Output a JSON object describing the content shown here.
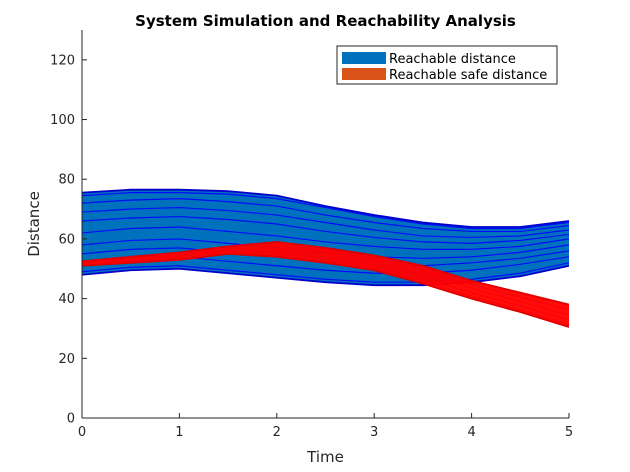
{
  "chart_data": {
    "type": "area",
    "title": "System Simulation and Reachability Analysis",
    "xlabel": "Time",
    "ylabel": "Distance",
    "xlim": [
      0,
      5
    ],
    "ylim": [
      0,
      130
    ],
    "xticks": [
      "0",
      "1",
      "2",
      "3",
      "4",
      "5"
    ],
    "yticks": [
      "0",
      "20",
      "40",
      "60",
      "80",
      "100",
      "120"
    ],
    "grid": false,
    "legend_position": "top-right",
    "series": [
      {
        "name": "Reachable distance",
        "color": "#0072BD",
        "line_color": "#0000FF",
        "x": [
          0,
          0.5,
          1.0,
          1.5,
          2.0,
          2.5,
          3.0,
          3.5,
          4.0,
          4.5,
          5.0
        ],
        "lower": [
          48,
          49.5,
          50,
          48.5,
          47,
          45.5,
          44.5,
          44.5,
          45.5,
          47.5,
          51
        ],
        "upper": [
          75.5,
          76.5,
          76.5,
          76,
          74.5,
          71,
          68,
          65.5,
          64,
          64,
          66
        ],
        "trajectories": [
          [
            49,
            50.5,
            51,
            49.5,
            48,
            46.5,
            45.5,
            45.5,
            46.5,
            48.5,
            52
          ],
          [
            52,
            53.5,
            54,
            52.5,
            51,
            49.5,
            48.5,
            48.5,
            49.5,
            51.5,
            54
          ],
          [
            55,
            56.5,
            57,
            55.5,
            54,
            52.5,
            51,
            51,
            52,
            53.5,
            56
          ],
          [
            58,
            59.5,
            60,
            58.5,
            57,
            55.5,
            54,
            53.5,
            54,
            55.5,
            58
          ],
          [
            62,
            63.5,
            64,
            62.5,
            61,
            59,
            57.5,
            56.5,
            56.5,
            57.5,
            60
          ],
          [
            66,
            67,
            67.5,
            66.5,
            65,
            62.5,
            60.5,
            59,
            58.5,
            59.5,
            61.5
          ],
          [
            69,
            70,
            70.5,
            69.5,
            68,
            65.5,
            63,
            61,
            60.5,
            61,
            63
          ],
          [
            72,
            73,
            73.5,
            72.5,
            71,
            68,
            65.5,
            63.5,
            62.5,
            62.5,
            64.5
          ],
          [
            74.5,
            75.5,
            75.5,
            75,
            73.5,
            70.5,
            67.5,
            65,
            63.5,
            63.5,
            65.5
          ]
        ]
      },
      {
        "name": "Reachable safe distance",
        "color": "#D95319",
        "line_color": "#FF0000",
        "x": [
          0,
          0.5,
          1.0,
          1.5,
          2.0,
          2.5,
          3.0,
          3.5,
          4.0,
          4.5,
          5.0
        ],
        "lower": [
          51,
          52,
          53,
          55,
          54,
          52,
          49.5,
          45,
          40,
          35.5,
          30.5
        ],
        "upper": [
          52.5,
          54,
          55.5,
          57.5,
          59,
          57,
          54.5,
          51,
          46,
          42,
          38
        ],
        "trajectories": [
          [
            51.2,
            52.2,
            53.3,
            55.3,
            54.5,
            52.5,
            50,
            45.8,
            40.8,
            36.3,
            31.3
          ],
          [
            51.5,
            52.7,
            53.8,
            55.8,
            55.5,
            53.5,
            51,
            47,
            42,
            37.5,
            32.8
          ],
          [
            51.8,
            53.1,
            54.4,
            56.4,
            56.8,
            54.8,
            52.3,
            48.5,
            43.5,
            39,
            34.5
          ],
          [
            52.1,
            53.5,
            55,
            57,
            58,
            56,
            53.5,
            49.8,
            44.8,
            40.5,
            36.3
          ],
          [
            52.4,
            53.9,
            55.4,
            57.4,
            58.8,
            56.8,
            54.3,
            50.8,
            45.8,
            41.8,
            37.7
          ]
        ]
      }
    ]
  }
}
